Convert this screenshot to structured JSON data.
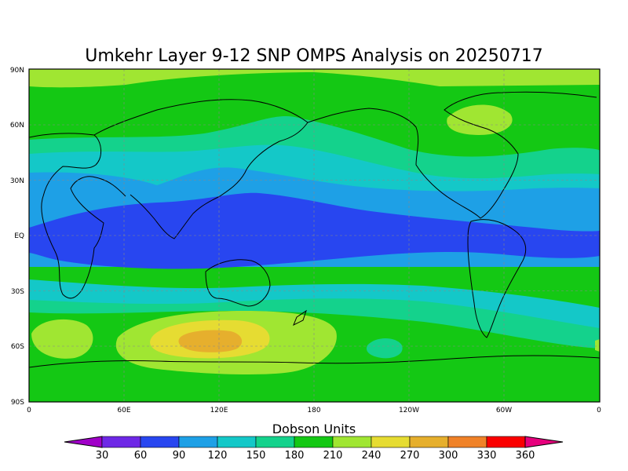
{
  "title": "Umkehr Layer 9-12 SNP OMPS Analysis on 20250717",
  "lat_labels": [
    "90N",
    "60N",
    "30N",
    "EQ",
    "30S",
    "60S",
    "90S"
  ],
  "lon_labels": [
    "0",
    "60E",
    "120E",
    "180",
    "120W",
    "60W",
    "0"
  ],
  "colorbar": {
    "title": "Dobson Units",
    "ticks": [
      "30",
      "60",
      "90",
      "120",
      "150",
      "180",
      "210",
      "240",
      "270",
      "300",
      "330",
      "360"
    ],
    "colors": [
      "#a000c8",
      "#6e28e6",
      "#2846f0",
      "#1ea0e6",
      "#14c8c8",
      "#14d28c",
      "#14c814",
      "#a0e632",
      "#e6dc32",
      "#e6af2d",
      "#f08228",
      "#fa0000",
      "#e6007d"
    ]
  },
  "legend_colors": {
    "band_below_60": "#2846f0",
    "band_60_90": "#1ea0e6",
    "band_90_120": "#14c8c8",
    "band_120_150": "#14d28c",
    "band_150_180": "#14c814",
    "band_180_210": "#a0e632",
    "band_210_240": "#e6dc32",
    "band_240_270": "#e6af2d"
  }
}
